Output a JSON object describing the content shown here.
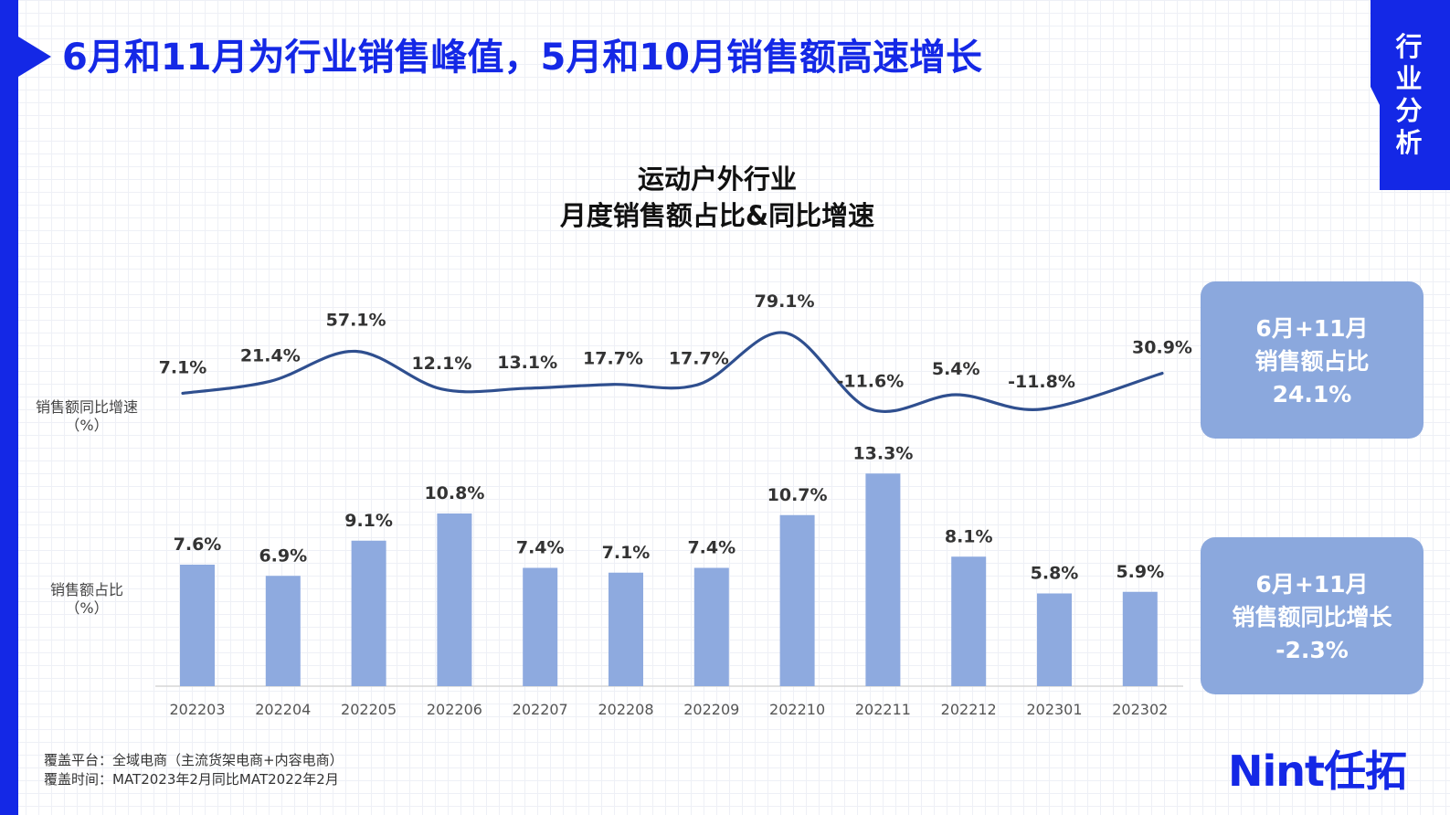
{
  "page": {
    "title": "6月和11月为行业销售峰值，5月和10月销售额高速增长",
    "section_tab": [
      "行",
      "业",
      "分",
      "析"
    ],
    "footnotes": [
      "覆盖平台：全域电商（主流货架电商+内容电商）",
      "覆盖时间：MAT2023年2月同比MAT2022年2月"
    ],
    "brand": "Nint任拓"
  },
  "colors": {
    "accent": "#1428e6",
    "bar": "#8eaadf",
    "line": "#2f4f8f",
    "summary_box": "#8ba8dd"
  },
  "chart_data": {
    "type": "bar+line",
    "title": [
      "运动户外行业",
      "月度销售额占比&同比增速"
    ],
    "categories": [
      "202203",
      "202204",
      "202205",
      "202206",
      "202207",
      "202208",
      "202209",
      "202210",
      "202211",
      "202212",
      "202301",
      "202302"
    ],
    "series": [
      {
        "name": "销售额同比增速",
        "type": "line",
        "axis_label": [
          "销售额同比增速",
          "（%）"
        ],
        "values": [
          7.1,
          21.4,
          57.1,
          12.1,
          13.1,
          17.7,
          17.7,
          79.1,
          -11.6,
          5.4,
          -11.8,
          30.9
        ],
        "labels": [
          "7.1%",
          "21.4%",
          "57.1%",
          "12.1%",
          "13.1%",
          "17.7%",
          "17.7%",
          "79.1%",
          "-11.6%",
          "5.4%",
          "-11.8%",
          "30.9%"
        ]
      },
      {
        "name": "销售额占比",
        "type": "bar",
        "axis_label": [
          "销售额占比",
          "（%）"
        ],
        "values": [
          7.6,
          6.9,
          9.1,
          10.8,
          7.4,
          7.1,
          7.4,
          10.7,
          13.3,
          8.1,
          5.8,
          5.9
        ],
        "labels": [
          "7.6%",
          "6.9%",
          "9.1%",
          "10.8%",
          "7.4%",
          "7.1%",
          "7.4%",
          "10.7%",
          "13.3%",
          "8.1%",
          "5.8%",
          "5.9%"
        ]
      }
    ]
  },
  "summary": [
    {
      "line1": "6月+11月",
      "line2": "销售额占比",
      "value": "24.1%"
    },
    {
      "line1": "6月+11月",
      "line2": "销售额同比增长",
      "value": "-2.3%"
    }
  ]
}
